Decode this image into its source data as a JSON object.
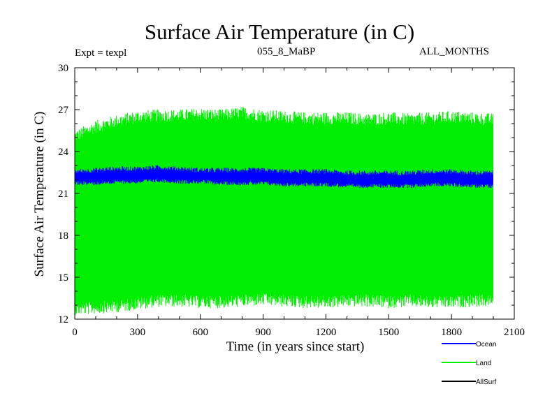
{
  "chart_data": {
    "type": "line",
    "title": "Surface Air Temperature (in C)",
    "annotations": {
      "experiment": "Expt = texpl",
      "run": "055_8_MaBP",
      "months": "ALL_MONTHS"
    },
    "xlabel": "Time (in years since start)",
    "ylabel": "Surface Air Temperature (in C)",
    "xlim": [
      0,
      2100
    ],
    "ylim": [
      12,
      30
    ],
    "xticks": [
      "0",
      "300",
      "600",
      "900",
      "1200",
      "1500",
      "1800",
      "2100"
    ],
    "yticks": [
      "12",
      "15",
      "18",
      "21",
      "24",
      "27",
      "30"
    ],
    "series": [
      {
        "name": "Land",
        "color": "#00ee00",
        "style": "high-frequency band (annual cycle)",
        "x_range": [
          0,
          2000
        ],
        "envelope": {
          "x": [
            0,
            100,
            200,
            300,
            400,
            500,
            600,
            700,
            800,
            900,
            1000,
            1100,
            1200,
            1300,
            1400,
            1500,
            1600,
            1700,
            1800,
            1900,
            2000
          ],
          "upper": [
            24.9,
            25.6,
            26.0,
            26.3,
            26.4,
            26.4,
            26.5,
            26.4,
            26.6,
            26.4,
            26.3,
            26.2,
            26.2,
            26.2,
            26.1,
            26.2,
            26.1,
            26.2,
            26.3,
            26.2,
            26.1
          ],
          "lower": [
            12.9,
            13.0,
            13.1,
            13.3,
            13.5,
            13.5,
            13.4,
            13.4,
            13.5,
            13.6,
            13.5,
            13.4,
            13.4,
            13.5,
            13.5,
            13.4,
            13.5,
            13.4,
            13.4,
            13.5,
            13.5
          ]
        }
      },
      {
        "name": "Ocean",
        "color": "#0000ff",
        "style": "narrow band",
        "x_range": [
          0,
          2000
        ],
        "envelope": {
          "x": [
            0,
            100,
            200,
            300,
            400,
            500,
            600,
            700,
            800,
            900,
            1000,
            1100,
            1200,
            1300,
            1400,
            1500,
            1600,
            1700,
            1800,
            1900,
            2000
          ],
          "upper": [
            22.5,
            22.6,
            22.7,
            22.7,
            22.8,
            22.7,
            22.6,
            22.6,
            22.6,
            22.6,
            22.5,
            22.5,
            22.5,
            22.4,
            22.4,
            22.4,
            22.4,
            22.5,
            22.5,
            22.4,
            22.4
          ],
          "lower": [
            21.8,
            21.8,
            21.9,
            21.9,
            22.0,
            21.9,
            21.9,
            21.8,
            21.8,
            21.8,
            21.7,
            21.7,
            21.7,
            21.6,
            21.6,
            21.6,
            21.6,
            21.7,
            21.7,
            21.6,
            21.6
          ]
        }
      },
      {
        "name": "AllSurf",
        "color": "#000000",
        "style": "legend only",
        "x_range": [
          0,
          2000
        ]
      }
    ],
    "legend": [
      "Ocean",
      "Land",
      "AllSurf"
    ],
    "legend_position": "bottom-right"
  }
}
